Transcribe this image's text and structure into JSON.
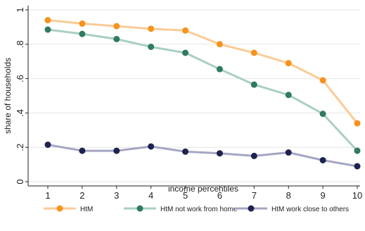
{
  "chart_data": {
    "type": "line",
    "title": "",
    "xlabel": "income percentiles",
    "ylabel": "share of households",
    "x": [
      1,
      2,
      3,
      4,
      5,
      6,
      7,
      8,
      9,
      10
    ],
    "xlim": [
      1,
      10
    ],
    "ylim": [
      0,
      1
    ],
    "xticks": [
      "1",
      "2",
      "3",
      "4",
      "5",
      "6",
      "7",
      "8",
      "9",
      "10"
    ],
    "yticks": [
      {
        "value": 0,
        "label": "0"
      },
      {
        "value": 0.2,
        "label": ".2"
      },
      {
        "value": 0.4,
        "label": ".4"
      },
      {
        "value": 0.6,
        "label": ".6"
      },
      {
        "value": 0.8,
        "label": ".8"
      },
      {
        "value": 1,
        "label": "1"
      }
    ],
    "grid": true,
    "legend_position": "bottom",
    "series": [
      {
        "name": "HtM",
        "line_color": "#fbcb96",
        "marker_color": "#f7931e",
        "values": [
          0.94,
          0.92,
          0.905,
          0.89,
          0.88,
          0.8,
          0.75,
          0.69,
          0.59,
          0.34
        ]
      },
      {
        "name": "HtM not work from home",
        "line_color": "#a9cfc1",
        "marker_color": "#2f7a62",
        "values": [
          0.885,
          0.86,
          0.83,
          0.785,
          0.75,
          0.655,
          0.565,
          0.505,
          0.395,
          0.18
        ]
      },
      {
        "name": "HtM work close to others",
        "line_color": "#a5a6c4",
        "marker_color": "#1c2350",
        "values": [
          0.215,
          0.18,
          0.18,
          0.205,
          0.175,
          0.165,
          0.15,
          0.17,
          0.125,
          0.09
        ]
      }
    ]
  }
}
